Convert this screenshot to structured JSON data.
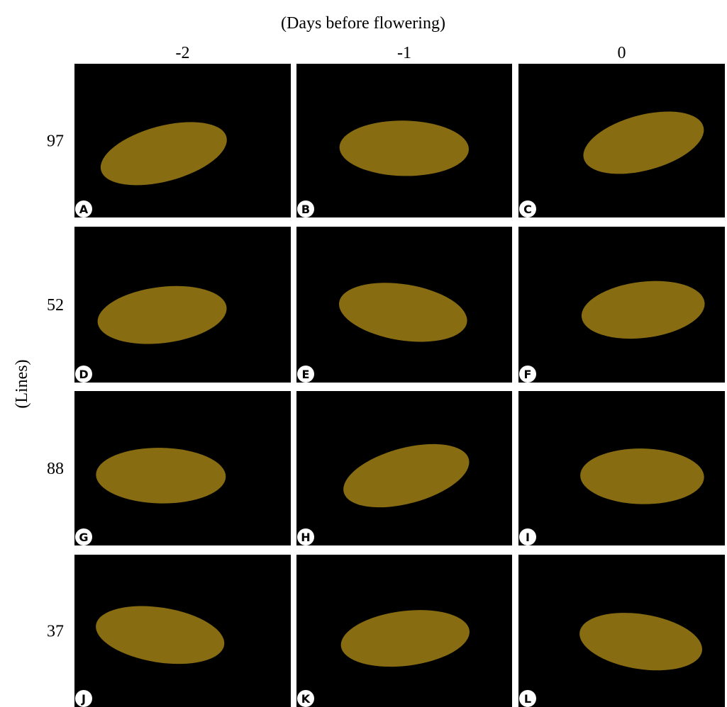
{
  "figure": {
    "x_axis_title": "(Days before flowering)",
    "columns": [
      "-2",
      "-1",
      "0"
    ],
    "y_axis_title": "(Lines)",
    "rows": [
      "97",
      "52",
      "88",
      "37"
    ],
    "panels": [
      [
        "A",
        "B",
        "C"
      ],
      [
        "D",
        "E",
        "F"
      ],
      [
        "G",
        "H",
        "I"
      ],
      [
        "J",
        "K",
        "L"
      ]
    ]
  }
}
